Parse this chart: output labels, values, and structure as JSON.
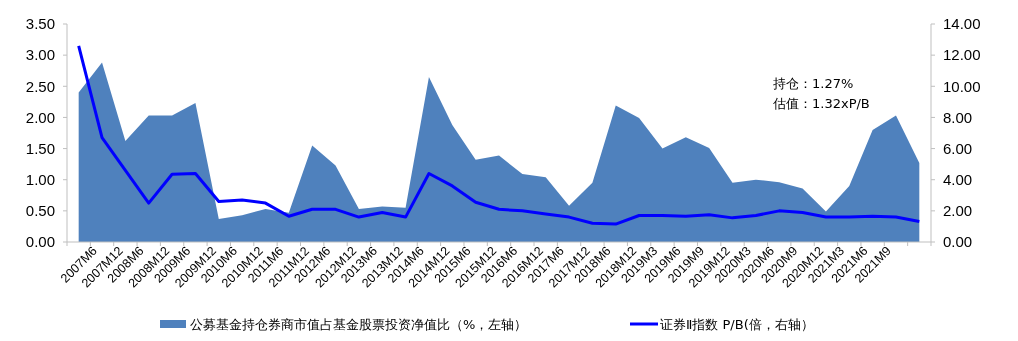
{
  "chart_data": {
    "type": "area",
    "categories": [
      "2007M6",
      "2007M12",
      "2008M6",
      "2008M12",
      "2009M6",
      "2009M12",
      "2010M6",
      "2010M12",
      "2011M6",
      "2011M12",
      "2012M6",
      "2012M12",
      "2013M6",
      "2013M12",
      "2014M6",
      "2014M12",
      "2015M6",
      "2015M12",
      "2016M6",
      "2016M12",
      "2017M6",
      "2017M12",
      "2018M6",
      "2018M12",
      "2019M3",
      "2019M6",
      "2019M9",
      "2019M12",
      "2020M3",
      "2020M6",
      "2020M9",
      "2020M12",
      "2021M3",
      "2021M6",
      "2021M9",
      null,
      null
    ],
    "series": [
      {
        "name": "公募基金持仓券商市值占基金股票投资净值比（%，左轴）",
        "color": "#4f81bd",
        "values": [
          2.4,
          2.88,
          1.62,
          2.03,
          2.03,
          2.23,
          0.37,
          0.43,
          0.53,
          0.47,
          1.55,
          1.23,
          0.53,
          0.57,
          0.55,
          2.65,
          1.88,
          1.32,
          1.39,
          1.09,
          1.04,
          0.58,
          0.95,
          2.19,
          1.99,
          1.5,
          1.68,
          1.51,
          0.95,
          1.0,
          0.96,
          0.86,
          0.49,
          0.9,
          1.8,
          2.03,
          1.27
        ]
      },
      {
        "name": "证券Ⅱ指数 P/B(倍，右轴）",
        "type": "line",
        "axis": "y2",
        "color": "#0000ff",
        "values": [
          12.6,
          6.7,
          4.6,
          2.5,
          4.35,
          4.4,
          2.6,
          2.7,
          2.5,
          1.65,
          2.1,
          2.1,
          1.6,
          1.9,
          1.6,
          4.4,
          3.6,
          2.55,
          2.1,
          2.0,
          1.8,
          1.6,
          1.2,
          1.15,
          1.7,
          1.7,
          1.65,
          1.75,
          1.55,
          1.7,
          2.0,
          1.9,
          1.6,
          1.6,
          1.65,
          1.6,
          1.32
        ]
      }
    ],
    "ylim": [
      0,
      3.5
    ],
    "yticks": [
      {
        "value": 0,
        "label": "0.00"
      },
      {
        "value": 0.5,
        "label": "0.50"
      },
      {
        "value": 1,
        "label": "1.00"
      },
      {
        "value": 1.5,
        "label": "1.50"
      },
      {
        "value": 2,
        "label": "2.00"
      },
      {
        "value": 2.5,
        "label": "2.50"
      },
      {
        "value": 3,
        "label": "3.00"
      },
      {
        "value": 3.5,
        "label": "3.50"
      }
    ],
    "y2lim": [
      0,
      14
    ],
    "y2ticks": [
      {
        "value": 0,
        "label": "0.00"
      },
      {
        "value": 2,
        "label": "2.00"
      },
      {
        "value": 4,
        "label": "4.00"
      },
      {
        "value": 6,
        "label": "6.00"
      },
      {
        "value": 8,
        "label": "8.00"
      },
      {
        "value": 10,
        "label": "10.00"
      },
      {
        "value": 12,
        "label": "12.00"
      },
      {
        "value": 14,
        "label": "14.00"
      }
    ],
    "annotations": [
      "持仓：1.27%",
      "估值：1.32xP/B"
    ],
    "grid": false,
    "legend": "bottom",
    "line_style": "solid",
    "marker": "none"
  }
}
